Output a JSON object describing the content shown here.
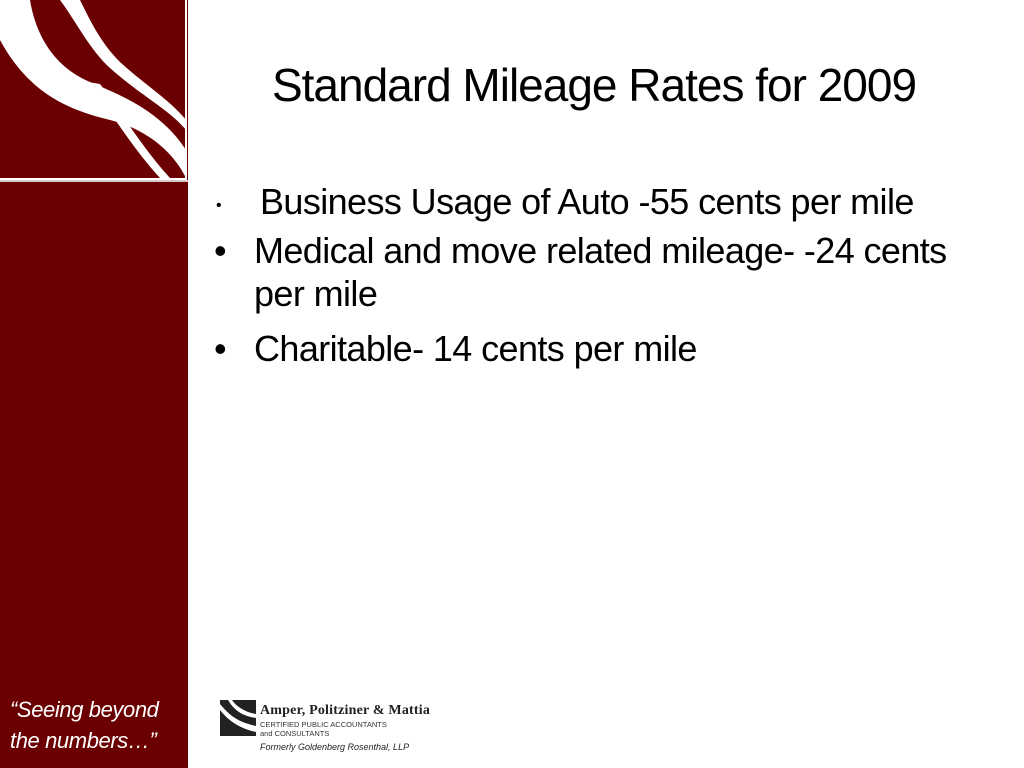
{
  "slide": {
    "title": "Standard Mileage Rates for 2009",
    "bullets": [
      "Business Usage of Auto -55 cents per mile",
      "Medical and move related mileage- -24 cents per mile",
      "Charitable- 14 cents per mile"
    ]
  },
  "sidebar": {
    "tagline_line1": "“Seeing beyond",
    "tagline_line2": "the numbers…”",
    "logo_icon": "wave-logo-icon"
  },
  "footer": {
    "firm_name": "Amper, Politziner & Mattia",
    "sub_line1": "CERTIFIED PUBLIC ACCOUNTANTS",
    "sub_line2": "and CONSULTANTS",
    "formerly": "Formerly Goldenberg Rosenthal, LLP",
    "logo_icon": "firm-mark-icon"
  },
  "colors": {
    "sidebar": "#6b0000",
    "text": "#000000"
  }
}
